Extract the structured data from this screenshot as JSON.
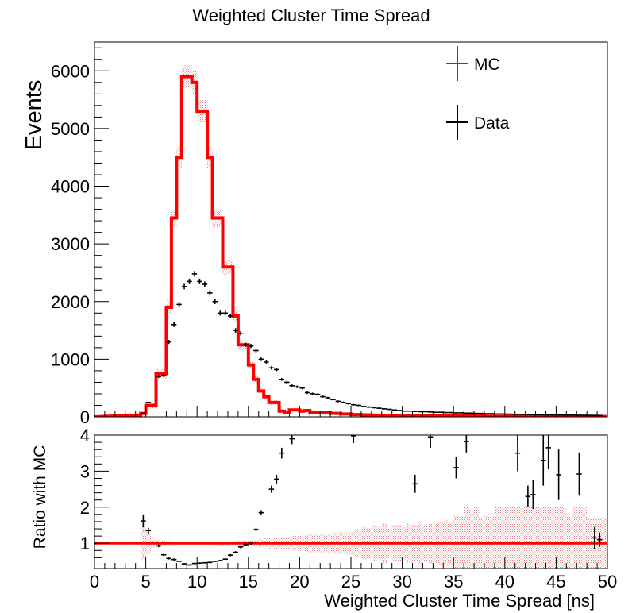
{
  "chart_data": [
    {
      "type": "line",
      "title": "Weighted Cluster Time Spread",
      "ylabel": "Events",
      "xlim": [
        0,
        50
      ],
      "ylim": [
        0,
        6500
      ],
      "yticks": [
        0,
        1000,
        2000,
        3000,
        4000,
        5000,
        6000
      ],
      "legend": {
        "placement": "top-right",
        "entries": [
          "MC",
          "Data"
        ]
      },
      "colors": {
        "mc": "#ff0000",
        "mc_band": "#d98080",
        "data": "#000000"
      },
      "bin_width": 0.5,
      "mc": {
        "name": "MC",
        "x": [
          4.25,
          4.75,
          5.25,
          5.75,
          6.25,
          6.75,
          7.25,
          7.75,
          8.25,
          8.75,
          9.25,
          9.75,
          10.25,
          10.75,
          11.25,
          11.75,
          12.25,
          12.75,
          13.25,
          13.75,
          14.25,
          14.75,
          15.25,
          15.75,
          16.25,
          16.75,
          17.25,
          17.75,
          18.25,
          18.75,
          19.25,
          19.75,
          20.25,
          20.75,
          21.25,
          21.75,
          22.25,
          22.75,
          23.25,
          23.75,
          24.25,
          24.75,
          25.25,
          25.75,
          26.25,
          26.75,
          27.25,
          27.75,
          28.25,
          28.75,
          29.25,
          29.75,
          30.25,
          30.75,
          31.25,
          31.75,
          32.25,
          32.75,
          33.25,
          33.75,
          34.25,
          34.75,
          35.25,
          35.75,
          36.25,
          36.75,
          37.25,
          37.75,
          38.25,
          38.75,
          39.25,
          39.75,
          40.25,
          40.75,
          41.25,
          41.75,
          42.25,
          42.75,
          43.25,
          43.75,
          44.25,
          44.75,
          45.25,
          45.75,
          46.25,
          46.75,
          47.25,
          47.75,
          48.25,
          48.75,
          49.25,
          49.75
        ],
        "values": [
          30,
          60,
          200,
          200,
          750,
          750,
          1900,
          3450,
          4500,
          5900,
          5900,
          5800,
          5300,
          5300,
          4500,
          3450,
          3450,
          2600,
          2600,
          1750,
          1250,
          1250,
          900,
          650,
          450,
          350,
          250,
          250,
          100,
          80,
          120,
          120,
          100,
          110,
          80,
          75,
          70,
          70,
          60,
          60,
          50,
          50,
          40,
          40,
          35,
          35,
          30,
          30,
          28,
          28,
          25,
          25,
          22,
          22,
          20,
          20,
          20,
          18,
          18,
          18,
          16,
          16,
          15,
          15,
          14,
          14,
          13,
          13,
          12,
          12,
          11,
          11,
          10,
          10,
          10,
          10,
          9,
          9,
          9,
          9,
          8,
          8,
          8,
          8,
          7,
          7,
          7,
          7,
          6,
          6,
          6,
          6
        ],
        "band": [
          10,
          20,
          40,
          50,
          80,
          90,
          120,
          150,
          180,
          200,
          200,
          200,
          190,
          190,
          180,
          160,
          150,
          130,
          120,
          100,
          90,
          80,
          70,
          60,
          50,
          45,
          40,
          35,
          30,
          28,
          26,
          26,
          24,
          22,
          20,
          20,
          18,
          18,
          16,
          16,
          15,
          15,
          14,
          14,
          13,
          13,
          12,
          12,
          11,
          11,
          10,
          10,
          10,
          10,
          9,
          9,
          9,
          9,
          8,
          8,
          8,
          8,
          7,
          7,
          7,
          7,
          6,
          6,
          6,
          6,
          6,
          6,
          5,
          5,
          5,
          5,
          5,
          5,
          5,
          5,
          5,
          5,
          5,
          5,
          5,
          5,
          5,
          5,
          5,
          5,
          5,
          5
        ]
      },
      "data": {
        "name": "Data",
        "x": [
          4.75,
          5.25,
          6.25,
          6.75,
          7.25,
          7.75,
          8.25,
          8.75,
          9.25,
          9.75,
          10.25,
          10.75,
          11.25,
          11.75,
          12.25,
          12.75,
          13.25,
          13.75,
          14.25,
          14.75,
          15.25,
          15.75,
          16.25,
          16.75,
          17.25,
          17.75,
          18.25,
          18.75,
          19.25,
          19.75,
          20.25,
          20.75,
          21.25,
          21.75,
          22.25,
          22.75,
          23.25,
          23.75,
          24.25,
          24.75,
          25.25,
          25.75,
          26.25,
          26.75,
          27.25,
          27.75,
          28.25,
          28.75,
          29.25,
          29.75,
          30.25,
          30.75,
          31.25,
          31.75,
          32.25,
          32.75,
          33.25,
          33.75,
          34.25,
          34.75,
          35.25,
          35.75,
          36.25,
          36.75,
          37.25,
          37.75,
          38.25,
          38.75,
          39.25,
          39.75,
          40.25,
          40.75,
          41.25,
          41.75,
          42.25,
          42.75,
          43.25,
          43.75,
          44.25,
          44.75,
          45.25,
          45.75,
          46.25,
          46.75,
          47.25,
          47.75,
          48.25,
          48.75,
          49.25
        ],
        "values": [
          60,
          250,
          700,
          720,
          1300,
          1600,
          1950,
          2260,
          2350,
          2480,
          2350,
          2300,
          2150,
          2000,
          1800,
          1800,
          1750,
          1500,
          1450,
          1250,
          1230,
          1150,
          1000,
          950,
          850,
          820,
          650,
          600,
          540,
          520,
          500,
          420,
          400,
          390,
          350,
          330,
          300,
          270,
          250,
          230,
          210,
          200,
          180,
          170,
          160,
          150,
          140,
          130,
          120,
          110,
          100,
          100,
          95,
          90,
          90,
          85,
          80,
          80,
          75,
          75,
          70,
          70,
          65,
          65,
          60,
          60,
          55,
          55,
          50,
          50,
          48,
          46,
          44,
          42,
          40,
          38,
          36,
          35,
          34,
          33,
          32,
          31,
          30,
          30,
          29,
          28,
          27,
          26,
          25
        ]
      }
    },
    {
      "type": "scatter",
      "xlabel": "Weighted Cluster Time Spread [ns]",
      "ylabel": "Ratio with MC",
      "xlim": [
        0,
        50
      ],
      "ylim": [
        0.3,
        4.0
      ],
      "xticks": [
        0,
        5,
        10,
        15,
        20,
        25,
        30,
        35,
        40,
        45,
        50
      ],
      "yticks": [
        1,
        2,
        3,
        4
      ],
      "reference_line": 1.0,
      "band_halfwidth": [
        {
          "x": 4.75,
          "e": 0.45
        },
        {
          "x": 5.25,
          "e": 0.3
        },
        {
          "x": 5.75,
          "e": 0.12
        },
        {
          "x": 6.25,
          "e": 0.1
        },
        {
          "x": 6.75,
          "e": 0.08
        },
        {
          "x": 7.25,
          "e": 0.06
        },
        {
          "x": 7.75,
          "e": 0.05
        },
        {
          "x": 8.25,
          "e": 0.04
        },
        {
          "x": 8.75,
          "e": 0.04
        },
        {
          "x": 9.25,
          "e": 0.04
        },
        {
          "x": 9.75,
          "e": 0.04
        },
        {
          "x": 10.25,
          "e": 0.04
        },
        {
          "x": 10.75,
          "e": 0.04
        },
        {
          "x": 11.25,
          "e": 0.04
        },
        {
          "x": 11.75,
          "e": 0.05
        },
        {
          "x": 12.25,
          "e": 0.05
        },
        {
          "x": 12.75,
          "e": 0.05
        },
        {
          "x": 13.25,
          "e": 0.05
        },
        {
          "x": 13.75,
          "e": 0.06
        },
        {
          "x": 14.25,
          "e": 0.07
        },
        {
          "x": 14.75,
          "e": 0.07
        },
        {
          "x": 15.25,
          "e": 0.08
        },
        {
          "x": 15.75,
          "e": 0.09
        },
        {
          "x": 16.25,
          "e": 0.11
        },
        {
          "x": 16.75,
          "e": 0.13
        },
        {
          "x": 17.25,
          "e": 0.15
        },
        {
          "x": 17.75,
          "e": 0.15
        },
        {
          "x": 18.25,
          "e": 0.17
        },
        {
          "x": 18.75,
          "e": 0.18
        },
        {
          "x": 19.25,
          "e": 0.2
        },
        {
          "x": 19.75,
          "e": 0.2
        },
        {
          "x": 20.25,
          "e": 0.22
        },
        {
          "x": 20.75,
          "e": 0.24
        },
        {
          "x": 21.25,
          "e": 0.25
        },
        {
          "x": 21.75,
          "e": 0.26
        },
        {
          "x": 22.25,
          "e": 0.27
        },
        {
          "x": 22.75,
          "e": 0.28
        },
        {
          "x": 23.25,
          "e": 0.3
        },
        {
          "x": 23.75,
          "e": 0.3
        },
        {
          "x": 24.25,
          "e": 0.3
        },
        {
          "x": 24.75,
          "e": 0.32
        },
        {
          "x": 25.25,
          "e": 0.35
        },
        {
          "x": 25.75,
          "e": 0.4
        },
        {
          "x": 26.25,
          "e": 0.45
        },
        {
          "x": 26.75,
          "e": 0.42
        },
        {
          "x": 27.25,
          "e": 0.5
        },
        {
          "x": 27.75,
          "e": 0.45
        },
        {
          "x": 28.25,
          "e": 0.55
        },
        {
          "x": 28.75,
          "e": 0.4
        },
        {
          "x": 29.25,
          "e": 0.5
        },
        {
          "x": 29.75,
          "e": 0.5
        },
        {
          "x": 30.25,
          "e": 0.45
        },
        {
          "x": 30.75,
          "e": 0.55
        },
        {
          "x": 31.25,
          "e": 0.5
        },
        {
          "x": 31.75,
          "e": 0.6
        },
        {
          "x": 32.25,
          "e": 0.5
        },
        {
          "x": 32.75,
          "e": 0.55
        },
        {
          "x": 33.25,
          "e": 0.55
        },
        {
          "x": 33.75,
          "e": 0.6
        },
        {
          "x": 34.25,
          "e": 0.65
        },
        {
          "x": 34.75,
          "e": 0.6
        },
        {
          "x": 35.25,
          "e": 0.8
        },
        {
          "x": 35.75,
          "e": 0.75
        },
        {
          "x": 36.25,
          "e": 1.0
        },
        {
          "x": 36.75,
          "e": 0.95
        },
        {
          "x": 37.25,
          "e": 1.0
        },
        {
          "x": 37.75,
          "e": 0.7
        },
        {
          "x": 38.25,
          "e": 0.8
        },
        {
          "x": 38.75,
          "e": 0.75
        },
        {
          "x": 39.25,
          "e": 1.0
        },
        {
          "x": 39.75,
          "e": 1.0
        },
        {
          "x": 40.25,
          "e": 1.0
        },
        {
          "x": 40.75,
          "e": 1.0
        },
        {
          "x": 41.25,
          "e": 1.0
        },
        {
          "x": 41.75,
          "e": 1.0
        },
        {
          "x": 42.25,
          "e": 1.0
        },
        {
          "x": 42.75,
          "e": 1.0
        },
        {
          "x": 43.25,
          "e": 1.0
        },
        {
          "x": 43.75,
          "e": 1.0
        },
        {
          "x": 44.25,
          "e": 1.0
        },
        {
          "x": 44.75,
          "e": 1.0
        },
        {
          "x": 45.25,
          "e": 1.0
        },
        {
          "x": 45.75,
          "e": 1.0
        },
        {
          "x": 46.25,
          "e": 0.75
        },
        {
          "x": 46.75,
          "e": 1.0
        },
        {
          "x": 47.25,
          "e": 1.0
        },
        {
          "x": 47.75,
          "e": 1.0
        },
        {
          "x": 48.25,
          "e": 0.7
        },
        {
          "x": 48.75,
          "e": 0.7
        },
        {
          "x": 49.25,
          "e": 0.7
        },
        {
          "x": 49.75,
          "e": 0.7
        }
      ],
      "points": [
        {
          "x": 4.75,
          "y": 1.62,
          "e": 0.18
        },
        {
          "x": 5.25,
          "y": 1.35,
          "e": 0.08
        },
        {
          "x": 6.25,
          "y": 0.93,
          "e": 0.04
        },
        {
          "x": 6.75,
          "y": 0.68,
          "e": 0.03
        },
        {
          "x": 7.25,
          "y": 0.58,
          "e": 0.03
        },
        {
          "x": 7.75,
          "y": 0.55,
          "e": 0.03
        },
        {
          "x": 8.25,
          "y": 0.5,
          "e": 0.02
        },
        {
          "x": 8.75,
          "y": 0.43,
          "e": 0.02
        },
        {
          "x": 9.25,
          "y": 0.4,
          "e": 0.02
        },
        {
          "x": 9.75,
          "y": 0.44,
          "e": 0.02
        },
        {
          "x": 10.25,
          "y": 0.45,
          "e": 0.02
        },
        {
          "x": 10.75,
          "y": 0.46,
          "e": 0.02
        },
        {
          "x": 11.25,
          "y": 0.47,
          "e": 0.02
        },
        {
          "x": 11.75,
          "y": 0.5,
          "e": 0.02
        },
        {
          "x": 12.25,
          "y": 0.52,
          "e": 0.02
        },
        {
          "x": 12.75,
          "y": 0.56,
          "e": 0.02
        },
        {
          "x": 13.25,
          "y": 0.67,
          "e": 0.03
        },
        {
          "x": 13.75,
          "y": 0.75,
          "e": 0.03
        },
        {
          "x": 14.25,
          "y": 0.9,
          "e": 0.04
        },
        {
          "x": 14.75,
          "y": 0.96,
          "e": 0.04
        },
        {
          "x": 15.25,
          "y": 1.0,
          "e": 0.04
        },
        {
          "x": 15.75,
          "y": 1.38,
          "e": 0.05
        },
        {
          "x": 16.25,
          "y": 1.85,
          "e": 0.07
        },
        {
          "x": 17.25,
          "y": 2.5,
          "e": 0.1
        },
        {
          "x": 17.75,
          "y": 2.78,
          "e": 0.12
        },
        {
          "x": 18.25,
          "y": 3.5,
          "e": 0.15
        },
        {
          "x": 19.25,
          "y": 3.9,
          "e": 0.15
        },
        {
          "x": 25.25,
          "y": 3.98,
          "e": 0.2
        },
        {
          "x": 31.25,
          "y": 2.65,
          "e": 0.25
        },
        {
          "x": 32.75,
          "y": 3.95,
          "e": 0.3
        },
        {
          "x": 35.25,
          "y": 3.1,
          "e": 0.3
        },
        {
          "x": 36.25,
          "y": 3.82,
          "e": 0.3
        },
        {
          "x": 41.25,
          "y": 3.5,
          "e": 0.5
        },
        {
          "x": 42.25,
          "y": 2.3,
          "e": 0.3
        },
        {
          "x": 42.75,
          "y": 2.35,
          "e": 0.4
        },
        {
          "x": 43.75,
          "y": 3.3,
          "e": 0.7
        },
        {
          "x": 44.25,
          "y": 3.65,
          "e": 0.6
        },
        {
          "x": 45.25,
          "y": 2.9,
          "e": 0.7
        },
        {
          "x": 47.25,
          "y": 2.92,
          "e": 0.6
        },
        {
          "x": 48.75,
          "y": 1.15,
          "e": 0.3
        },
        {
          "x": 49.25,
          "y": 1.1,
          "e": 0.2
        }
      ]
    }
  ]
}
